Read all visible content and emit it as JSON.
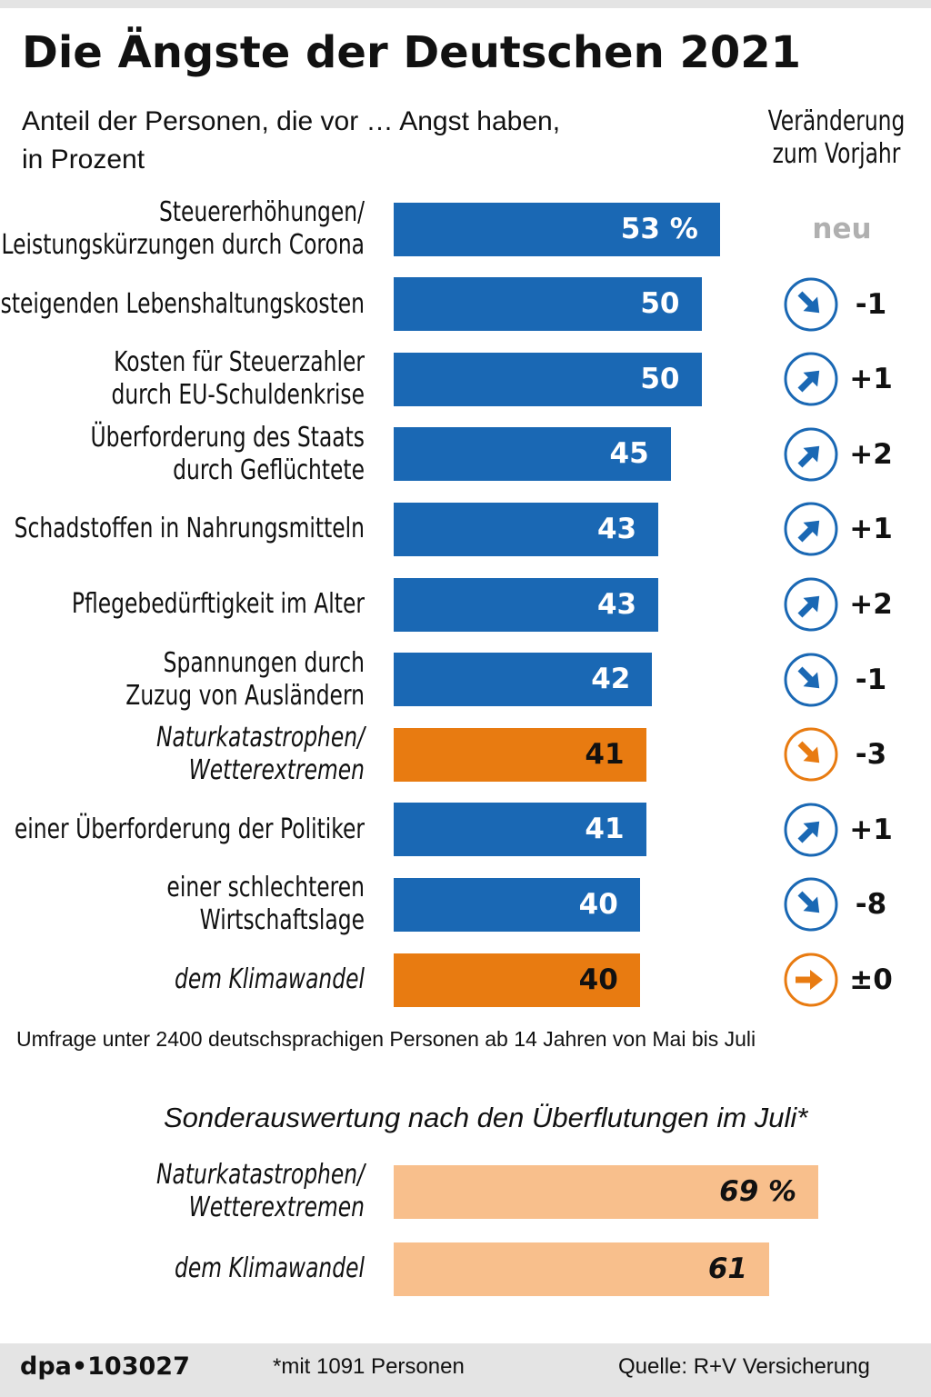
{
  "title": "Die Ängste der Deutschen 2021",
  "chart_data": [
    {
      "type": "bar",
      "subtitle": "Anteil der Personen, die vor … Angst haben,\nin Prozent",
      "change_header": "Veränderung\nzum Vorjahr",
      "categories": [
        "Steuererhöhungen/\nLeistungskürzungen durch Corona",
        "steigenden Lebenshaltungskosten",
        "Kosten für Steuerzahler\ndurch EU-Schuldenkrise",
        "Überforderung des Staats\ndurch Geflüchtete",
        "Schadstoffen in Nahrungsmitteln",
        "Pflegebedürftigkeit im Alter",
        "Spannungen durch\nZuzug von Ausländern",
        "Naturkatastrophen/\nWetterextremen",
        "einer Überforderung der Politiker",
        "einer schlechteren Wirtschaftslage",
        "dem Klimawandel"
      ],
      "values": [
        53,
        50,
        50,
        45,
        43,
        43,
        42,
        41,
        41,
        40,
        40
      ],
      "value_labels": [
        "53 %",
        "50",
        "50",
        "45",
        "43",
        "43",
        "42",
        "41",
        "41",
        "40",
        "40"
      ],
      "colors": [
        "#1a68b4",
        "#1a68b4",
        "#1a68b4",
        "#1a68b4",
        "#1a68b4",
        "#1a68b4",
        "#1a68b4",
        "#e87b11",
        "#1a68b4",
        "#1a68b4",
        "#e87b11"
      ],
      "italic": [
        false,
        false,
        false,
        false,
        false,
        false,
        false,
        true,
        false,
        false,
        true
      ],
      "changes": [
        null,
        -1,
        1,
        2,
        1,
        2,
        -1,
        -3,
        1,
        -8,
        0
      ],
      "change_labels": [
        "neu",
        "-1",
        "+1",
        "+2",
        "+1",
        "+2",
        "-1",
        "-3",
        "+1",
        "-8",
        "±0"
      ],
      "note": "Umfrage unter 2400 deutschsprachigen  Personen ab 14 Jahren von Mai bis Juli"
    },
    {
      "type": "bar",
      "title": "Sonderauswertung nach den Überflutungen im Juli*",
      "categories": [
        "Naturkatastrophen/\nWetterextremen",
        "dem Klimawandel"
      ],
      "values": [
        69,
        61
      ],
      "value_labels": [
        "69 %",
        "61"
      ],
      "color": "#f8bf8c",
      "italic": true
    }
  ],
  "footer": {
    "id": "dpa•103027",
    "footnote": "*mit 1091 Personen",
    "source": "Quelle: R+V Versicherung"
  }
}
